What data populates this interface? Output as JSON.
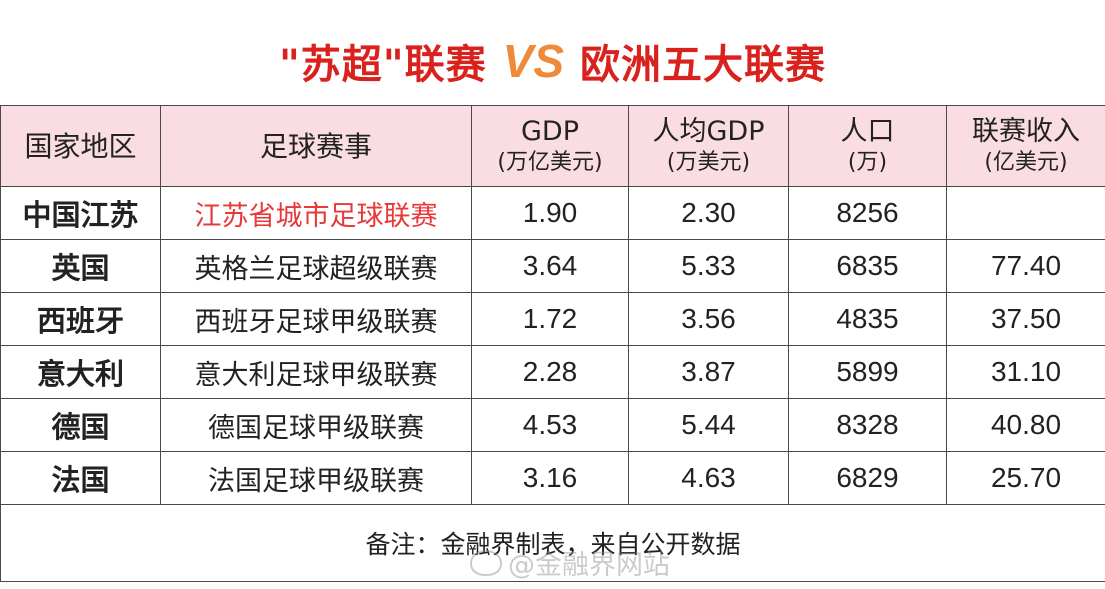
{
  "title": {
    "left": "\"苏超\"联赛",
    "vs": "VS",
    "right": "欧洲五大联赛"
  },
  "table": {
    "headers": [
      {
        "label": "国家地区",
        "unit": ""
      },
      {
        "label": "足球赛事",
        "unit": ""
      },
      {
        "label": "GDP",
        "unit": "(万亿美元)"
      },
      {
        "label": "人均GDP",
        "unit": "(万美元)"
      },
      {
        "label": "人口",
        "unit": "(万)"
      },
      {
        "label": "联赛收入",
        "unit": "(亿美元)"
      }
    ],
    "rows": [
      {
        "region": "中国江苏",
        "league": "江苏省城市足球联赛",
        "gdp": "1.90",
        "gdp_per_capita": "2.30",
        "population": "8256",
        "revenue": ""
      },
      {
        "region": "英国",
        "league": "英格兰足球超级联赛",
        "gdp": "3.64",
        "gdp_per_capita": "5.33",
        "population": "6835",
        "revenue": "77.40"
      },
      {
        "region": "西班牙",
        "league": "西班牙足球甲级联赛",
        "gdp": "1.72",
        "gdp_per_capita": "3.56",
        "population": "4835",
        "revenue": "37.50"
      },
      {
        "region": "意大利",
        "league": "意大利足球甲级联赛",
        "gdp": "2.28",
        "gdp_per_capita": "3.87",
        "population": "5899",
        "revenue": "31.10"
      },
      {
        "region": "德国",
        "league": "德国足球甲级联赛",
        "gdp": "4.53",
        "gdp_per_capita": "5.44",
        "population": "8328",
        "revenue": "40.80"
      },
      {
        "region": "法国",
        "league": "法国足球甲级联赛",
        "gdp": "3.16",
        "gdp_per_capita": "4.63",
        "population": "6829",
        "revenue": "25.70"
      }
    ],
    "footnote": "备注：金融界制表，来自公开数据"
  },
  "watermark": "@金融界网站",
  "colors": {
    "title_red": "#d9211d",
    "vs_orange": "#ef8a3a",
    "header_bg": "#fadde3",
    "highlight_red": "#e8393a"
  }
}
